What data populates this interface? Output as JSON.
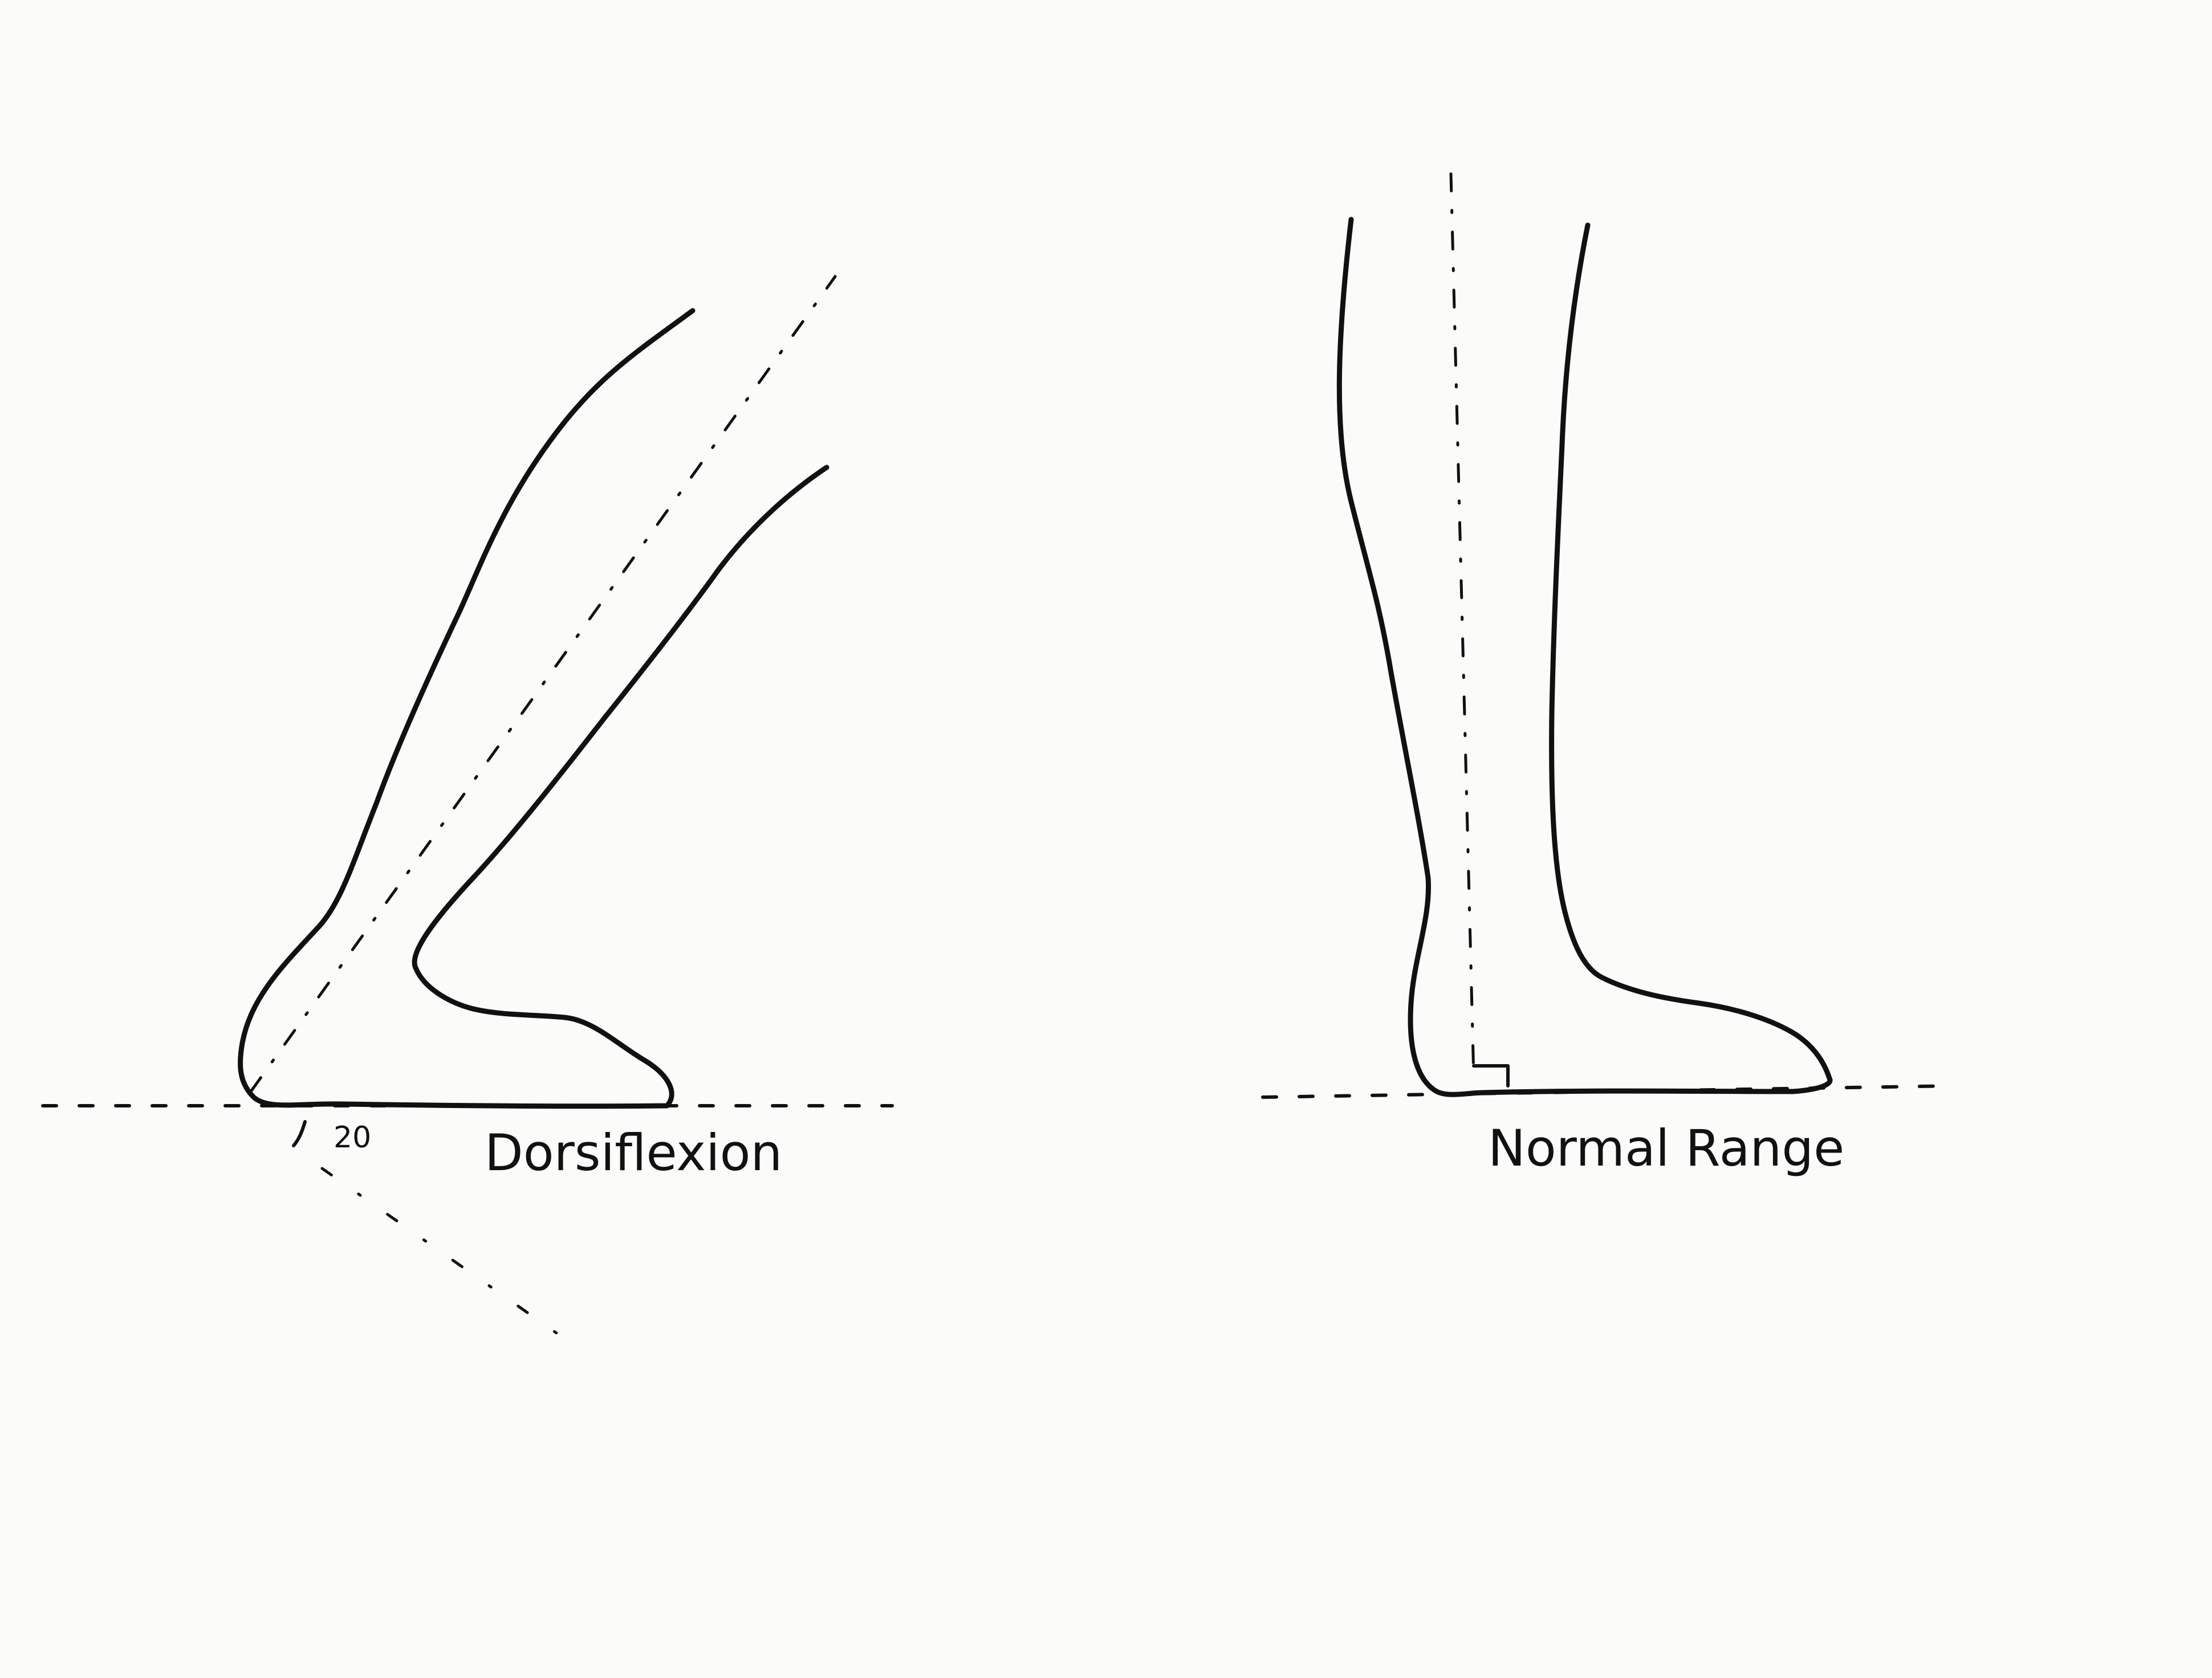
{
  "figures": {
    "dorsiflexion": {
      "label": "Dorsiflexion",
      "angle_label": "20"
    },
    "normal": {
      "label": "Normal Range"
    }
  },
  "colors": {
    "ink": "#111111",
    "paper": "#fbfbfa"
  }
}
